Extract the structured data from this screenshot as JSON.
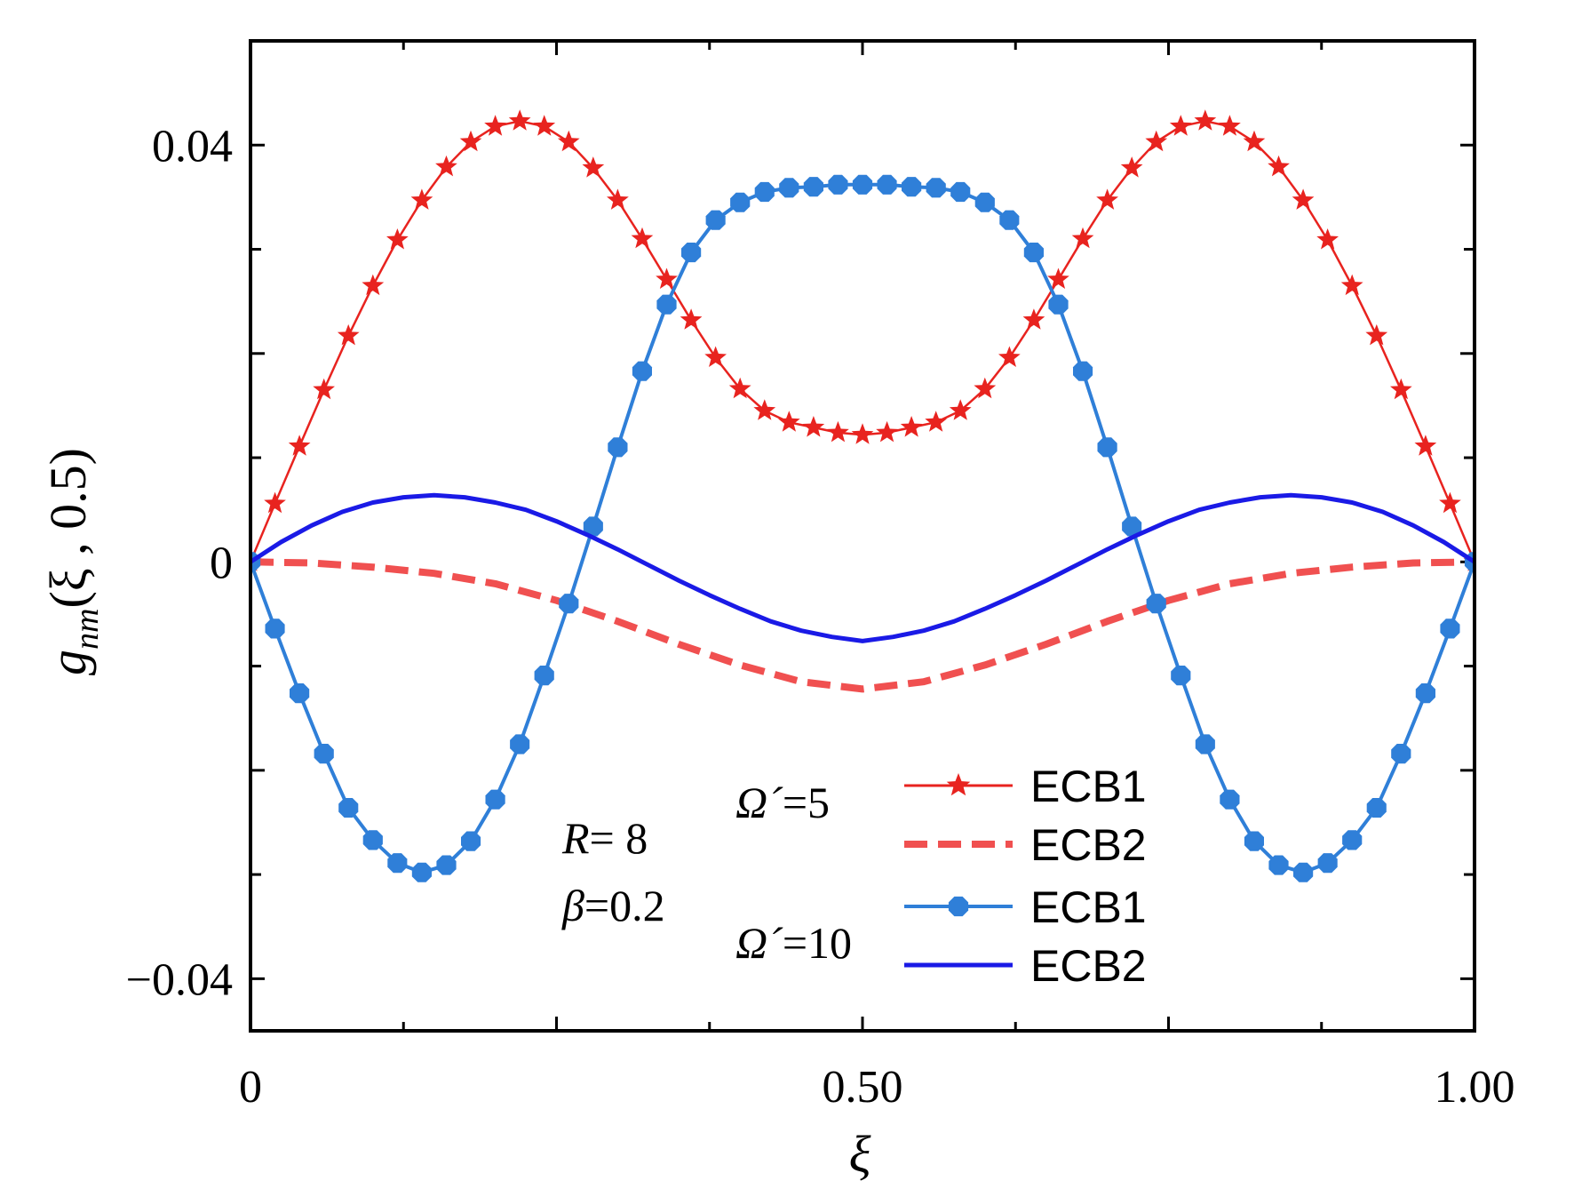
{
  "chart_data": {
    "type": "line",
    "title": "",
    "xlabel": "ξ",
    "ylabel_main": "g",
    "ylabel_sub": "nm",
    "ylabel_args": "(ξ , 0.5)",
    "xlim": [
      0,
      1
    ],
    "ylim": [
      -0.045,
      0.05
    ],
    "x_ticks": [
      0,
      0.5,
      1
    ],
    "x_tick_labels": [
      "0",
      "0.50",
      "1.00"
    ],
    "y_ticks": [
      -0.04,
      0,
      0.04
    ],
    "y_tick_labels": [
      "−0.04",
      "0",
      "0.04"
    ],
    "annotations": {
      "R": "R",
      "R_eq": "= 8",
      "beta": "β",
      "beta_eq": "=0.2",
      "omega5": "Ω´",
      "omega5_eq": "=5",
      "omega10": "Ω´",
      "omega10_eq": "=10"
    },
    "legend_position": "bottom-center",
    "series": [
      {
        "name": "ECB1",
        "group": "Ω´=5",
        "color": "#e8231f",
        "style": "solid-star",
        "x": [
          0,
          0.02,
          0.04,
          0.06,
          0.08,
          0.1,
          0.12,
          0.14,
          0.16,
          0.18,
          0.2,
          0.22,
          0.24,
          0.26,
          0.28,
          0.3,
          0.32,
          0.34,
          0.36,
          0.38,
          0.4,
          0.42,
          0.44,
          0.46,
          0.48,
          0.5,
          0.52,
          0.54,
          0.56,
          0.58,
          0.6,
          0.62,
          0.64,
          0.66,
          0.68,
          0.7,
          0.72,
          0.74,
          0.76,
          0.78,
          0.8,
          0.82,
          0.84,
          0.86,
          0.88,
          0.9,
          0.92,
          0.94,
          0.96,
          0.98,
          1.0
        ],
        "y": [
          0,
          0.0056,
          0.0111,
          0.0165,
          0.0217,
          0.0265,
          0.0309,
          0.0347,
          0.0379,
          0.0403,
          0.0418,
          0.0423,
          0.0418,
          0.0403,
          0.0378,
          0.0347,
          0.031,
          0.0271,
          0.0232,
          0.0196,
          0.0166,
          0.0145,
          0.0134,
          0.0129,
          0.0124,
          0.0122,
          0.0124,
          0.0129,
          0.0134,
          0.0145,
          0.0166,
          0.0196,
          0.0232,
          0.0271,
          0.031,
          0.0347,
          0.0378,
          0.0403,
          0.0418,
          0.0423,
          0.0418,
          0.0403,
          0.0379,
          0.0347,
          0.0309,
          0.0265,
          0.0217,
          0.0165,
          0.0111,
          0.0056,
          0
        ]
      },
      {
        "name": "ECB2",
        "group": "Ω´=5",
        "color": "#f05050",
        "style": "dashed",
        "x": [
          0,
          0.05,
          0.1,
          0.15,
          0.2,
          0.25,
          0.3,
          0.35,
          0.4,
          0.45,
          0.5,
          0.55,
          0.6,
          0.65,
          0.7,
          0.75,
          0.8,
          0.85,
          0.9,
          0.95,
          1.0
        ],
        "y": [
          0,
          -0.0001,
          -0.0005,
          -0.0011,
          -0.0021,
          -0.0037,
          -0.0057,
          -0.0079,
          -0.0099,
          -0.0115,
          -0.0122,
          -0.0115,
          -0.0099,
          -0.0079,
          -0.0057,
          -0.0037,
          -0.0021,
          -0.0011,
          -0.0005,
          -0.0001,
          0
        ]
      },
      {
        "name": "ECB1",
        "group": "Ω´=10",
        "color": "#2f7fd8",
        "style": "solid-octagon",
        "x": [
          0,
          0.02,
          0.04,
          0.06,
          0.08,
          0.1,
          0.12,
          0.14,
          0.16,
          0.18,
          0.2,
          0.22,
          0.24,
          0.26,
          0.28,
          0.3,
          0.32,
          0.34,
          0.36,
          0.38,
          0.4,
          0.42,
          0.44,
          0.46,
          0.48,
          0.5,
          0.52,
          0.54,
          0.56,
          0.58,
          0.6,
          0.62,
          0.64,
          0.66,
          0.68,
          0.7,
          0.72,
          0.74,
          0.76,
          0.78,
          0.8,
          0.82,
          0.84,
          0.86,
          0.88,
          0.9,
          0.92,
          0.94,
          0.96,
          0.98,
          1.0
        ],
        "y": [
          0,
          -0.0064,
          -0.0126,
          -0.0184,
          -0.0236,
          -0.0267,
          -0.0289,
          -0.0298,
          -0.0291,
          -0.0268,
          -0.0228,
          -0.0175,
          -0.0109,
          -0.004,
          0.0034,
          0.011,
          0.0183,
          0.0247,
          0.0297,
          0.0328,
          0.0345,
          0.0355,
          0.0359,
          0.036,
          0.0362,
          0.0362,
          0.0362,
          0.036,
          0.0359,
          0.0355,
          0.0345,
          0.0328,
          0.0297,
          0.0247,
          0.0183,
          0.011,
          0.0034,
          -0.004,
          -0.0109,
          -0.0175,
          -0.0228,
          -0.0268,
          -0.0291,
          -0.0298,
          -0.0289,
          -0.0267,
          -0.0236,
          -0.0184,
          -0.0126,
          -0.0064,
          0
        ]
      },
      {
        "name": "ECB2",
        "group": "Ω´=10",
        "color": "#1a1ae6",
        "style": "solid",
        "x": [
          0,
          0.025,
          0.05,
          0.075,
          0.1,
          0.125,
          0.15,
          0.175,
          0.2,
          0.225,
          0.25,
          0.275,
          0.3,
          0.325,
          0.35,
          0.375,
          0.4,
          0.425,
          0.45,
          0.475,
          0.5,
          0.525,
          0.55,
          0.575,
          0.6,
          0.625,
          0.65,
          0.675,
          0.7,
          0.725,
          0.75,
          0.775,
          0.8,
          0.825,
          0.85,
          0.875,
          0.9,
          0.925,
          0.95,
          0.975,
          1.0
        ],
        "y": [
          0,
          0.0019,
          0.0035,
          0.0048,
          0.0057,
          0.0062,
          0.0064,
          0.0062,
          0.0057,
          0.005,
          0.0039,
          0.0026,
          0.0012,
          -0.0003,
          -0.0018,
          -0.0032,
          -0.0045,
          -0.0057,
          -0.0066,
          -0.0072,
          -0.0076,
          -0.0072,
          -0.0066,
          -0.0057,
          -0.0045,
          -0.0032,
          -0.0018,
          -0.0003,
          0.0012,
          0.0026,
          0.0039,
          0.005,
          0.0057,
          0.0062,
          0.0064,
          0.0062,
          0.0057,
          0.0048,
          0.0035,
          0.0019,
          0
        ]
      }
    ]
  }
}
